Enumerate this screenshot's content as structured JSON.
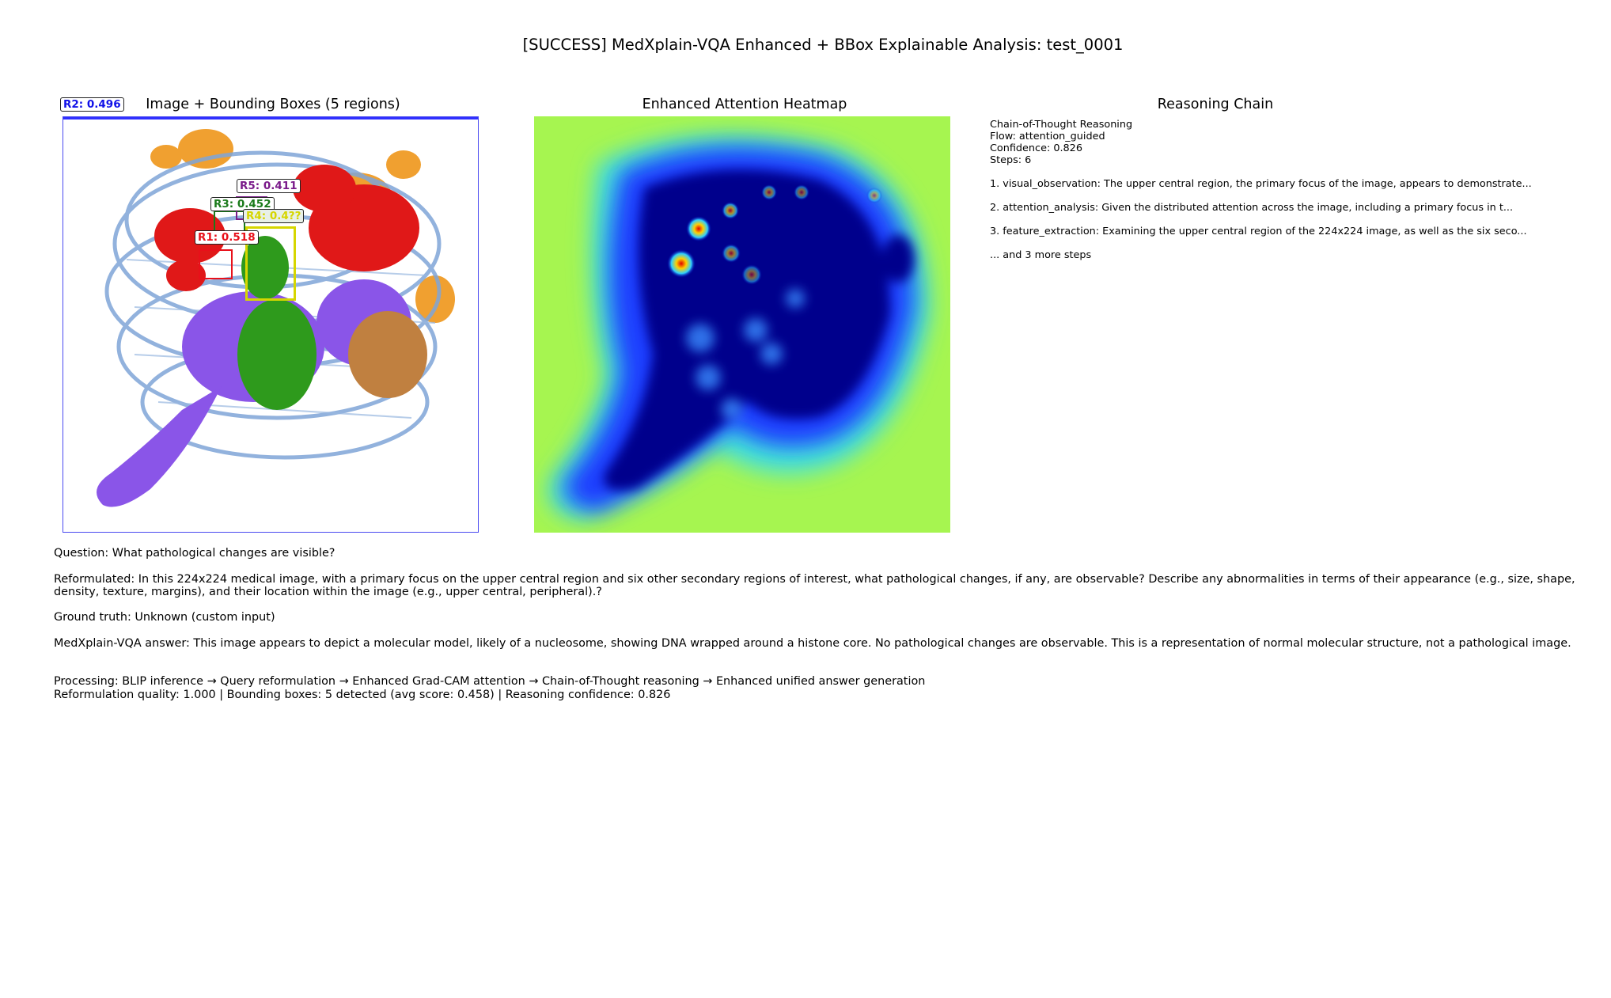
{
  "title": "[SUCCESS] MedXplain-VQA Enhanced + BBox Explainable Analysis: test_0001",
  "panels": {
    "image": {
      "title": "Image + Bounding Boxes (5 regions)",
      "boxes": [
        {
          "label": "R1: 0.518",
          "color": "#e8101a"
        },
        {
          "label": "R2: 0.496",
          "color": "#1010e8"
        },
        {
          "label": "R3: 0.452",
          "color": "#1a7a1a"
        },
        {
          "label": "R4: 0.4??",
          "color": "#d6d600"
        },
        {
          "label": "R5: 0.411",
          "color": "#7a1a8a"
        }
      ]
    },
    "heatmap": {
      "title": "Enhanced Attention Heatmap",
      "colormap": "jet"
    },
    "reasoning": {
      "title": "Reasoning Chain",
      "header": "Chain-of-Thought Reasoning",
      "flow": "Flow: attention_guided",
      "confidence": "Confidence: 0.826",
      "steps": "Steps: 6",
      "step_items": [
        "1. visual_observation: The upper central region, the primary focus of the image, appears to demonstrate...",
        "2. attention_analysis: Given the distributed attention across the image, including a primary focus in t...",
        "3. feature_extraction: Examining the upper central region of the 224x224 image, as well as the six seco..."
      ],
      "more": "... and 3 more steps"
    }
  },
  "details": {
    "question": "Question: What pathological changes are visible?",
    "reformulated": "Reformulated: In this 224x224 medical image, with a primary focus on the upper central region and six other secondary regions of interest, what pathological changes, if any, are observable?  Describe any abnormalities in terms of their appearance (e.g., size, shape, density, texture, margins), and their location within the image (e.g., upper central, peripheral).?",
    "ground_truth": "Ground truth: Unknown (custom input)",
    "answer": "MedXplain-VQA answer: This image appears to depict a molecular model, likely of a nucleosome, showing DNA wrapped around a histone core.  No pathological changes are observable. This is a representation of normal molecular structure, not a pathological image.",
    "processing": "Processing: BLIP inference → Query reformulation → Enhanced Grad-CAM attention → Chain-of-Thought reasoning → Enhanced unified answer generation",
    "quality": "Reformulation quality: 1.000 | Bounding boxes: 5 detected (avg score: 0.458) | Reasoning confidence: 0.826"
  }
}
